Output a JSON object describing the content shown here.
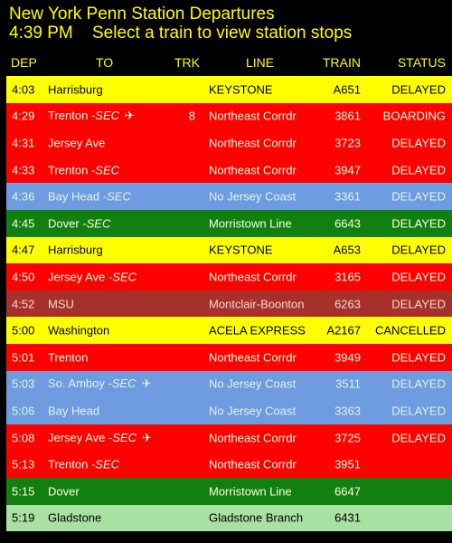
{
  "header": {
    "title": "New York Penn Station Departures",
    "time": "4:39 PM",
    "instruction": "Select a train to view station stops"
  },
  "columns": {
    "dep": "DEP",
    "to": "TO",
    "trk": "TRK",
    "line": "LINE",
    "train": "TRAIN",
    "status": "STATUS"
  },
  "colors": {
    "yellow": "#FFFF00",
    "red": "#FF0000",
    "blue": "#6F9BE1",
    "green": "#118011",
    "maroon": "#A7312A",
    "light_green": "#A8E1A2"
  },
  "rows": [
    {
      "dep": "4:03",
      "to": "Harrisburg",
      "to_suffix": "",
      "icon": "",
      "trk": "",
      "line": "KEYSTONE",
      "train": "A651",
      "status": "DELAYED",
      "theme": "yellow"
    },
    {
      "dep": "4:29",
      "to": "Trenton",
      "to_suffix": " -SEC",
      "icon": "airplane-icon",
      "trk": "8",
      "line": "Northeast Corrdr",
      "train": "3861",
      "status": "BOARDING",
      "theme": "red"
    },
    {
      "dep": "4:31",
      "to": "Jersey Ave",
      "to_suffix": "",
      "icon": "",
      "trk": "",
      "line": "Northeast Corrdr",
      "train": "3723",
      "status": "DELAYED",
      "theme": "red"
    },
    {
      "dep": "4:33",
      "to": "Trenton",
      "to_suffix": " -SEC",
      "icon": "",
      "trk": "",
      "line": "Northeast Corrdr",
      "train": "3947",
      "status": "DELAYED",
      "theme": "red"
    },
    {
      "dep": "4:36",
      "to": "Bay Head",
      "to_suffix": " -SEC",
      "icon": "",
      "trk": "",
      "line": "No Jersey Coast",
      "train": "3361",
      "status": "DELAYED",
      "theme": "blue"
    },
    {
      "dep": "4:45",
      "to": "Dover",
      "to_suffix": " -SEC",
      "icon": "",
      "trk": "",
      "line": "Morristown Line",
      "train": "6643",
      "status": "DELAYED",
      "theme": "green"
    },
    {
      "dep": "4:47",
      "to": "Harrisburg",
      "to_suffix": "",
      "icon": "",
      "trk": "",
      "line": "KEYSTONE",
      "train": "A653",
      "status": "DELAYED",
      "theme": "yellow"
    },
    {
      "dep": "4:50",
      "to": "Jersey Ave",
      "to_suffix": " -SEC",
      "icon": "",
      "trk": "",
      "line": "Northeast Corrdr",
      "train": "3165",
      "status": "DELAYED",
      "theme": "red"
    },
    {
      "dep": "4:52",
      "to": "MSU",
      "to_suffix": "",
      "icon": "",
      "trk": "",
      "line": "Montclair-Boonton",
      "train": "6263",
      "status": "DELAYED",
      "theme": "maroon"
    },
    {
      "dep": "5:00",
      "to": "Washington",
      "to_suffix": "",
      "icon": "",
      "trk": "",
      "line": "ACELA EXPRESS",
      "train": "A2167",
      "status": "CANCELLED",
      "theme": "yellow"
    },
    {
      "dep": "5:01",
      "to": "Trenton",
      "to_suffix": "",
      "icon": "",
      "trk": "",
      "line": "Northeast Corrdr",
      "train": "3949",
      "status": "DELAYED",
      "theme": "red"
    },
    {
      "dep": "5:03",
      "to": "So. Amboy",
      "to_suffix": " -SEC",
      "icon": "airplane-icon",
      "trk": "",
      "line": "No Jersey Coast",
      "train": "3511",
      "status": "DELAYED",
      "theme": "blue"
    },
    {
      "dep": "5:06",
      "to": "Bay Head",
      "to_suffix": "",
      "icon": "",
      "trk": "",
      "line": "No Jersey Coast",
      "train": "3363",
      "status": "DELAYED",
      "theme": "blue"
    },
    {
      "dep": "5:08",
      "to": "Jersey Ave",
      "to_suffix": " -SEC",
      "icon": "airplane-icon",
      "trk": "",
      "line": "Northeast Corrdr",
      "train": "3725",
      "status": "DELAYED",
      "theme": "red"
    },
    {
      "dep": "5:13",
      "to": "Trenton",
      "to_suffix": " -SEC",
      "icon": "",
      "trk": "",
      "line": "Northeast Corrdr",
      "train": "3951",
      "status": "",
      "theme": "red"
    },
    {
      "dep": "5:15",
      "to": "Dover",
      "to_suffix": "",
      "icon": "",
      "trk": "",
      "line": "Morristown Line",
      "train": "6647",
      "status": "",
      "theme": "green"
    },
    {
      "dep": "5:19",
      "to": "Gladstone",
      "to_suffix": "",
      "icon": "",
      "trk": "",
      "line": "Gladstone Branch",
      "train": "6431",
      "status": "",
      "theme": "light_green"
    }
  ]
}
